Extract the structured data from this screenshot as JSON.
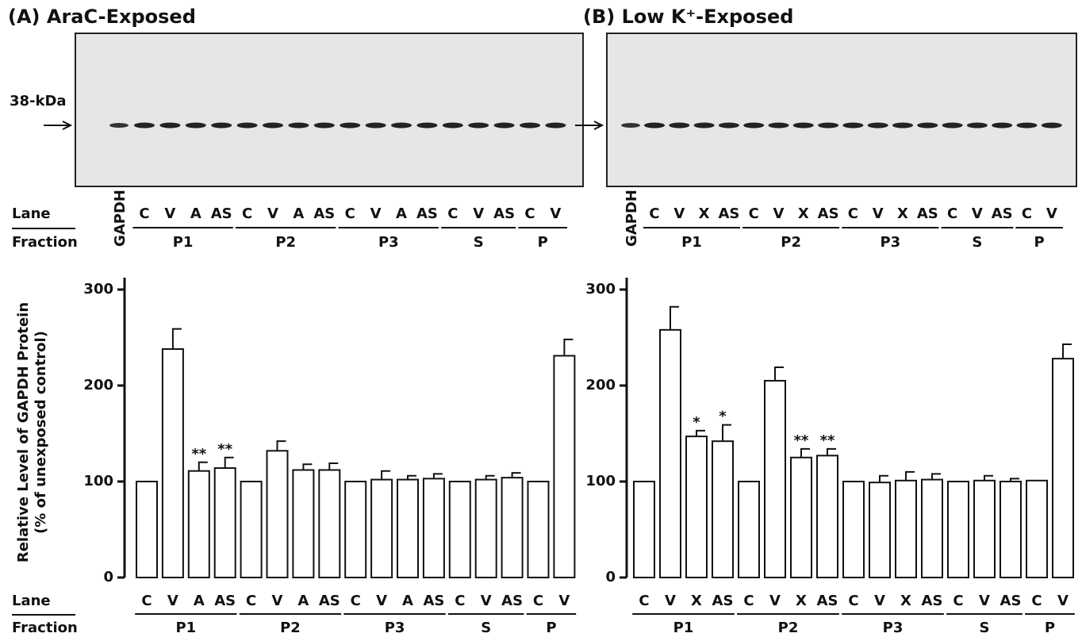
{
  "chart_data": [
    {
      "type": "bar",
      "title": "(A) AraC-Exposed",
      "blot_label": "38-kDa",
      "blot_lane": "GAPDH",
      "lane_label": "Lane",
      "fraction_label": "Fraction",
      "y_label": [
        "Relative Level of GAPDH Protein",
        "(% of unexposed control)"
      ],
      "ylim": [
        0,
        300
      ],
      "yticks": [
        0,
        100,
        200,
        300
      ],
      "color": "#ffffff",
      "groups": [
        {
          "name": "P1",
          "lanes": [
            "C",
            "V",
            "A",
            "AS"
          ],
          "values": [
            100,
            238,
            111,
            114
          ],
          "errors": [
            null,
            21,
            9,
            11
          ],
          "significance": [
            null,
            null,
            "**",
            "**"
          ]
        },
        {
          "name": "P2",
          "lanes": [
            "C",
            "V",
            "A",
            "AS"
          ],
          "values": [
            100,
            132,
            112,
            112
          ],
          "errors": [
            null,
            10,
            6,
            7
          ],
          "significance": [
            null,
            null,
            null,
            null
          ]
        },
        {
          "name": "P3",
          "lanes": [
            "C",
            "V",
            "A",
            "AS"
          ],
          "values": [
            100,
            102,
            102,
            103
          ],
          "errors": [
            null,
            9,
            4,
            5
          ],
          "significance": [
            null,
            null,
            null,
            null
          ]
        },
        {
          "name": "S",
          "lanes": [
            "C",
            "V",
            "AS"
          ],
          "values": [
            100,
            102,
            104
          ],
          "errors": [
            null,
            4,
            5
          ],
          "significance": [
            null,
            null,
            null
          ]
        },
        {
          "name": "P",
          "lanes": [
            "C",
            "V"
          ],
          "values": [
            100,
            231
          ],
          "errors": [
            null,
            17
          ],
          "significance": [
            null,
            null
          ]
        }
      ]
    },
    {
      "type": "bar",
      "title": "(B) Low K⁺-Exposed",
      "blot_lane": "GAPDH",
      "ylim": [
        0,
        300
      ],
      "yticks": [
        0,
        100,
        200,
        300
      ],
      "color": "#ffffff",
      "groups": [
        {
          "name": "P1",
          "lanes": [
            "C",
            "V",
            "X",
            "AS"
          ],
          "values": [
            100,
            258,
            147,
            142
          ],
          "errors": [
            null,
            24,
            6,
            17
          ],
          "significance": [
            null,
            null,
            "*",
            "*"
          ]
        },
        {
          "name": "P2",
          "lanes": [
            "C",
            "V",
            "X",
            "AS"
          ],
          "values": [
            100,
            205,
            125,
            127
          ],
          "errors": [
            null,
            14,
            9,
            7
          ],
          "significance": [
            null,
            null,
            "**",
            "**"
          ]
        },
        {
          "name": "P3",
          "lanes": [
            "C",
            "V",
            "X",
            "AS"
          ],
          "values": [
            100,
            99,
            101,
            102
          ],
          "errors": [
            null,
            7,
            9,
            6
          ],
          "significance": [
            null,
            null,
            null,
            null
          ]
        },
        {
          "name": "S",
          "lanes": [
            "C",
            "V",
            "AS"
          ],
          "values": [
            100,
            101,
            100
          ],
          "errors": [
            null,
            5,
            3
          ],
          "significance": [
            null,
            null,
            null
          ]
        },
        {
          "name": "P",
          "lanes": [
            "C",
            "V"
          ],
          "values": [
            101,
            228
          ],
          "errors": [
            null,
            15
          ],
          "significance": [
            null,
            null
          ]
        }
      ]
    }
  ]
}
